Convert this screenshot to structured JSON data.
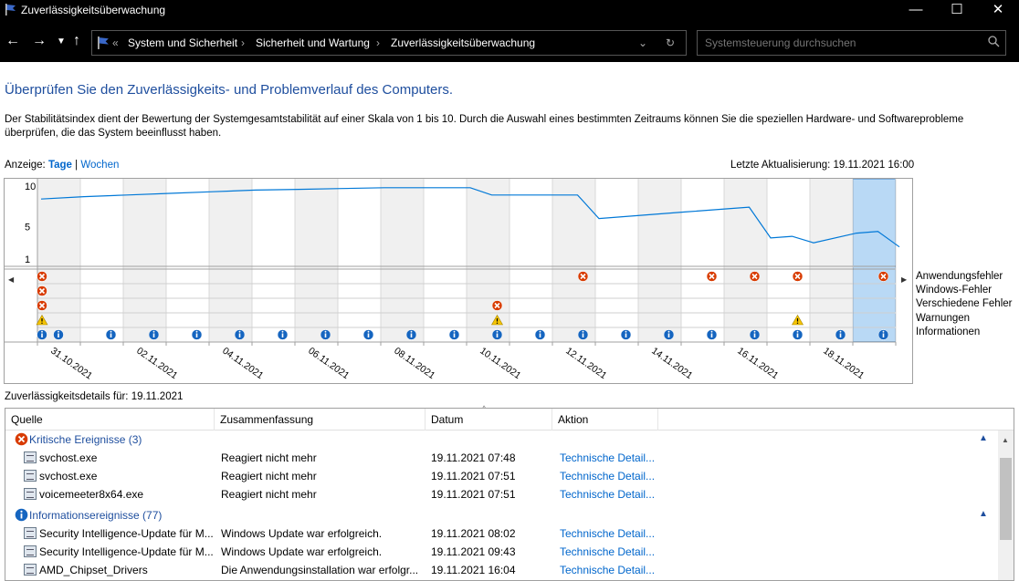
{
  "window": {
    "title": "Zuverlässigkeitsüberwachung"
  },
  "address": {
    "prefix": "«",
    "crumbs": [
      "System und Sicherheit",
      "Sicherheit und Wartung",
      "Zuverlässigkeitsüberwachung"
    ],
    "separator": "›"
  },
  "search": {
    "placeholder": "Systemsteuerung durchsuchen"
  },
  "heading": "Überprüfen Sie den Zuverlässigkeits- und Problemverlauf des Computers.",
  "description": "Der Stabilitätsindex dient der Bewertung der Systemgesamtstabilität auf einer Skala von 1 bis 10. Durch die Auswahl eines bestimmten Zeitraums können Sie die speziellen Hardware- und Softwareprobleme überprüfen, die das System beeinflusst haben.",
  "view": {
    "label": "Anzeige:",
    "days": "Tage",
    "separator": "|",
    "weeks": "Wochen"
  },
  "last_update": "Letzte Aktualisierung: 19.11.2021 16:00",
  "chart_data": {
    "type": "line",
    "y_ticks": [
      "10",
      "5",
      "1"
    ],
    "ylim": [
      1,
      10
    ],
    "x_labels": [
      "31.10.2021",
      "02.11.2021",
      "04.11.2021",
      "06.11.2021",
      "08.11.2021",
      "10.11.2021",
      "12.11.2021",
      "14.11.2021",
      "16.11.2021",
      "18.11.2021"
    ],
    "columns": 20,
    "selected_column": 19,
    "stability_points": [
      [
        0,
        8.4
      ],
      [
        1,
        8.7
      ],
      [
        2,
        8.9
      ],
      [
        3,
        9.1
      ],
      [
        4,
        9.3
      ],
      [
        5,
        9.5
      ],
      [
        6,
        9.6
      ],
      [
        7,
        9.7
      ],
      [
        8,
        9.8
      ],
      [
        9,
        9.8
      ],
      [
        10,
        9.8
      ],
      [
        10.5,
        8.9
      ],
      [
        11,
        8.9
      ],
      [
        12,
        8.9
      ],
      [
        12.5,
        8.9
      ],
      [
        13,
        6.0
      ],
      [
        14,
        6.4
      ],
      [
        15,
        6.8
      ],
      [
        16,
        7.2
      ],
      [
        16.5,
        7.4
      ],
      [
        17,
        3.6
      ],
      [
        17.5,
        3.8
      ],
      [
        18,
        3.0
      ],
      [
        19,
        4.2
      ],
      [
        19.5,
        4.4
      ],
      [
        20,
        2.5
      ]
    ],
    "rows": [
      "Anwendungsfehler",
      "Windows-Fehler",
      "Verschiedene Fehler",
      "Warnungen",
      "Informationen"
    ],
    "events": {
      "Anwendungsfehler": [
        0,
        13,
        16,
        17,
        18,
        20
      ],
      "Windows-Fehler": [
        0
      ],
      "Verschiedene Fehler": [
        0,
        11
      ],
      "Warnungen": [
        0,
        11,
        18
      ],
      "Informationen": [
        0,
        0.5,
        2,
        3,
        4,
        5,
        6,
        7,
        8,
        9,
        10,
        11,
        12,
        13,
        14,
        15,
        16,
        17,
        18,
        19,
        20
      ]
    }
  },
  "details": {
    "label": "Zuverlässigkeitsdetails für: 19.11.2021"
  },
  "table": {
    "columns": [
      "Quelle",
      "Zusammenfassung",
      "Datum",
      "Aktion"
    ],
    "groups": [
      {
        "label": "Kritische Ereignisse (3)",
        "type": "critical",
        "rows": [
          {
            "source": "svchost.exe",
            "summary": "Reagiert nicht mehr",
            "date": "19.11.2021 07:48",
            "action": "Technische Detail..."
          },
          {
            "source": "svchost.exe",
            "summary": "Reagiert nicht mehr",
            "date": "19.11.2021 07:51",
            "action": "Technische Detail..."
          },
          {
            "source": "voicemeeter8x64.exe",
            "summary": "Reagiert nicht mehr",
            "date": "19.11.2021 07:51",
            "action": "Technische Detail..."
          }
        ]
      },
      {
        "label": "Informationsereignisse (77)",
        "type": "info",
        "rows": [
          {
            "source": "Security Intelligence-Update für M...",
            "summary": "Windows Update war erfolgreich.",
            "date": "19.11.2021 08:02",
            "action": "Technische Detail..."
          },
          {
            "source": "Security Intelligence-Update für M...",
            "summary": "Windows Update war erfolgreich.",
            "date": "19.11.2021 09:43",
            "action": "Technische Detail..."
          },
          {
            "source": "AMD_Chipset_Drivers",
            "summary": "Die Anwendungsinstallation war erfolgr...",
            "date": "19.11.2021 16:04",
            "action": "Technische Detail..."
          }
        ]
      }
    ]
  },
  "colors": {
    "accent": "#0078d7",
    "link": "#0066cc",
    "heading": "#1e4e9e",
    "error": "#d83b01",
    "warning": "#f5c400",
    "info": "#1565c0",
    "selected": "#b9d9f5"
  }
}
